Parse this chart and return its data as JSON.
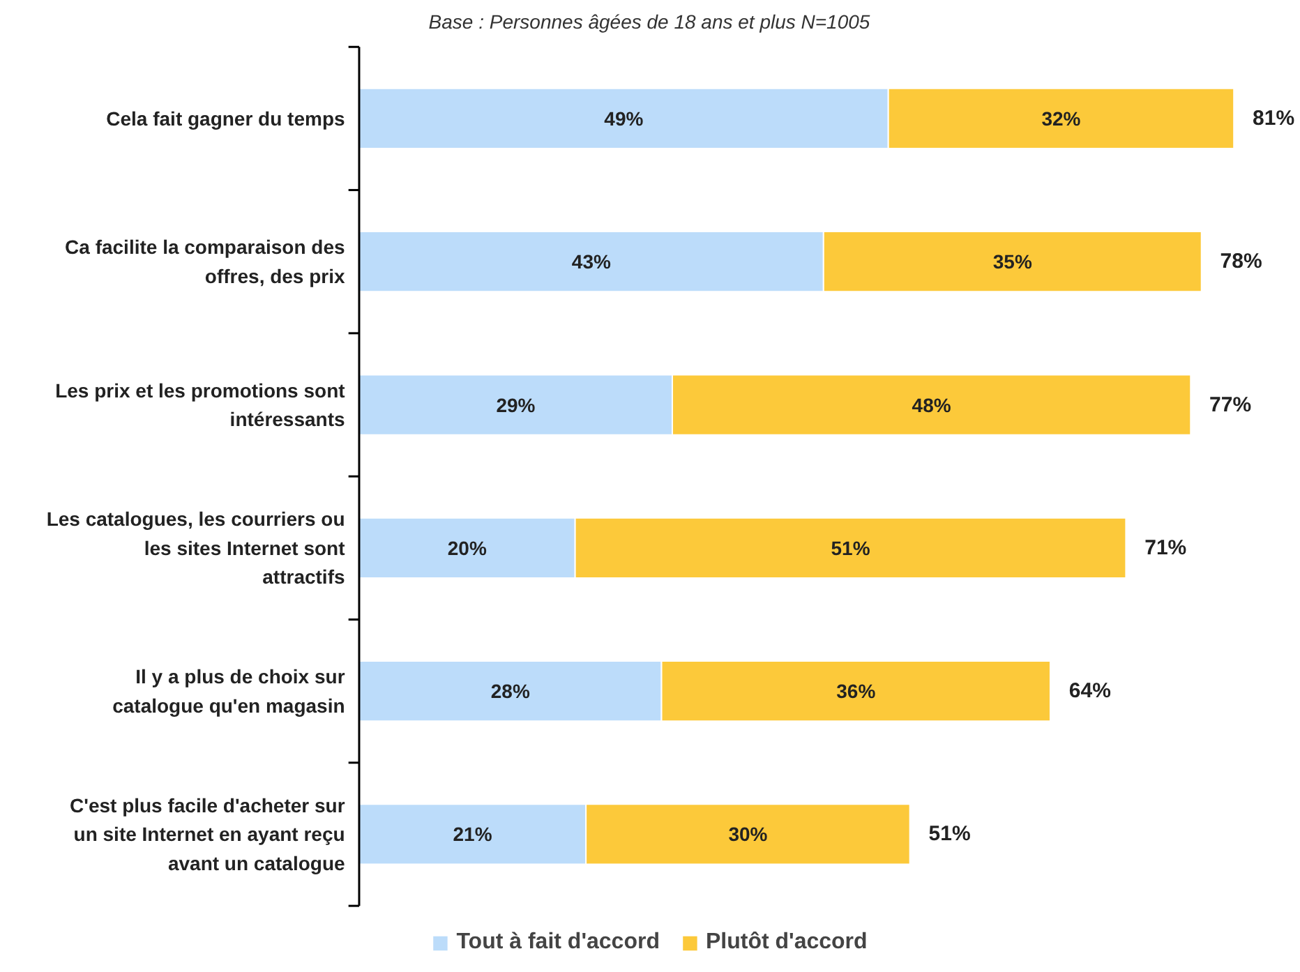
{
  "chart_data": {
    "type": "bar",
    "orientation": "horizontal",
    "stacked": true,
    "subtitle": "Base : Personnes âgées de 18 ans et plus N=1005",
    "categories": [
      "Cela fait gagner du temps",
      "Ca facilite la comparaison des offres, des prix",
      "Les prix et les promotions sont intéressants",
      "Les catalogues, les courriers ou les sites Internet sont attractifs",
      "Il y a plus de choix sur catalogue qu'en magasin",
      "C'est plus facile d'acheter sur un site Internet en ayant reçu avant un catalogue"
    ],
    "series": [
      {
        "name": "Tout à fait d'accord",
        "color": "#bcdcfa",
        "values": [
          49,
          43,
          29,
          20,
          28,
          21
        ],
        "value_labels": [
          "49%",
          "43%",
          "29%",
          "20%",
          "28%",
          "21%"
        ]
      },
      {
        "name": "Plutôt d'accord",
        "color": "#fcc93a",
        "values": [
          32,
          35,
          48,
          51,
          36,
          30
        ],
        "value_labels": [
          "32%",
          "35%",
          "48%",
          "51%",
          "36%",
          "30%"
        ]
      }
    ],
    "totals": [
      "81%",
      "78%",
      "77%",
      "71%",
      "64%",
      "51%"
    ],
    "legend": "bottom",
    "grid": false
  }
}
